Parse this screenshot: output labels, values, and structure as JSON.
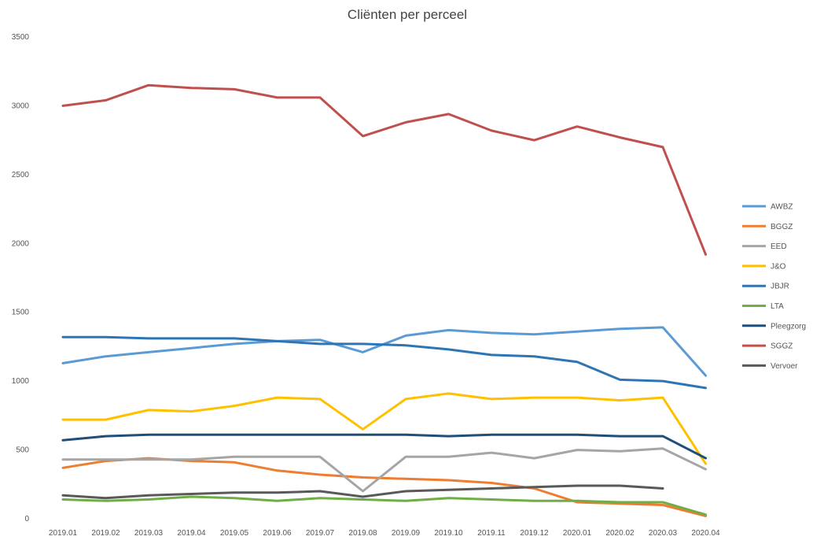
{
  "chart_data": {
    "type": "line",
    "title": "Cliënten per perceel",
    "xlabel": "",
    "ylabel": "",
    "ylim": [
      0,
      3500
    ],
    "yticks": [
      0,
      500,
      1000,
      1500,
      2000,
      2500,
      3000,
      3500
    ],
    "grid": false,
    "legend_position": "right",
    "categories": [
      "2019.01",
      "2019.02",
      "2019.03",
      "2019.04",
      "2019.05",
      "2019.06",
      "2019.07",
      "2019.08",
      "2019.09",
      "2019.10",
      "2019.11",
      "2019.12",
      "2020.01",
      "2020.02",
      "2020.03",
      "2020.04"
    ],
    "series": [
      {
        "name": "AWBZ",
        "color": "#5b9bd5",
        "values": [
          1130,
          1180,
          1210,
          1240,
          1270,
          1290,
          1300,
          1210,
          1330,
          1370,
          1350,
          1340,
          1360,
          1380,
          1390,
          1040
        ]
      },
      {
        "name": "BGGZ",
        "color": "#ed7d31",
        "values": [
          370,
          420,
          440,
          420,
          410,
          350,
          320,
          300,
          290,
          280,
          260,
          220,
          120,
          110,
          100,
          20
        ]
      },
      {
        "name": "EED",
        "color": "#a5a5a5",
        "values": [
          430,
          430,
          430,
          430,
          450,
          450,
          450,
          200,
          450,
          450,
          480,
          440,
          500,
          490,
          510,
          360
        ]
      },
      {
        "name": "J&O",
        "color": "#ffc000",
        "values": [
          720,
          720,
          790,
          780,
          820,
          880,
          870,
          650,
          870,
          910,
          870,
          880,
          880,
          860,
          880,
          400
        ]
      },
      {
        "name": "JBJR",
        "color": "#2e75b6",
        "values": [
          1320,
          1320,
          1310,
          1310,
          1310,
          1290,
          1270,
          1270,
          1260,
          1230,
          1190,
          1180,
          1140,
          1010,
          1000,
          950
        ]
      },
      {
        "name": "LTA",
        "color": "#70ad47",
        "values": [
          140,
          130,
          140,
          160,
          150,
          130,
          150,
          140,
          130,
          150,
          140,
          130,
          130,
          120,
          120,
          30
        ]
      },
      {
        "name": "Pleegzorg",
        "color": "#1f4e79",
        "values": [
          570,
          600,
          610,
          610,
          610,
          610,
          610,
          610,
          610,
          600,
          610,
          610,
          610,
          600,
          600,
          440
        ]
      },
      {
        "name": "SGGZ",
        "color": "#c0504d",
        "values": [
          3000,
          3040,
          3150,
          3130,
          3120,
          3060,
          3060,
          2780,
          2880,
          2940,
          2820,
          2750,
          2850,
          2770,
          2700,
          1920
        ]
      },
      {
        "name": "Vervoer",
        "color": "#595959",
        "values": [
          170,
          150,
          170,
          180,
          190,
          190,
          200,
          160,
          200,
          210,
          220,
          230,
          240,
          240,
          220,
          null
        ]
      }
    ]
  }
}
